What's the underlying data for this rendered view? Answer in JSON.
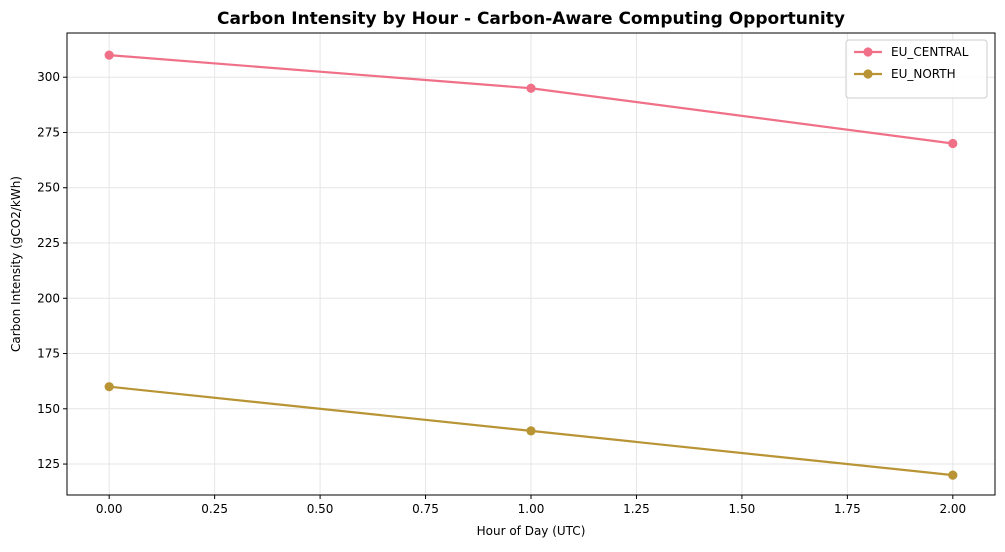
{
  "chart_data": {
    "type": "line",
    "title": "Carbon Intensity by Hour - Carbon-Aware Computing Opportunity",
    "xlabel": "Hour of Day (UTC)",
    "ylabel": "Carbon Intensity (gCO2/kWh)",
    "xlim": [
      -0.1,
      2.1
    ],
    "ylim": [
      111,
      320
    ],
    "xticks": [
      0.0,
      0.25,
      0.5,
      0.75,
      1.0,
      1.25,
      1.5,
      1.75,
      2.0
    ],
    "xtick_labels": [
      "0.00",
      "0.25",
      "0.50",
      "0.75",
      "1.00",
      "1.25",
      "1.50",
      "1.75",
      "2.00"
    ],
    "yticks": [
      125,
      150,
      175,
      200,
      225,
      250,
      275,
      300
    ],
    "ytick_labels": [
      "125",
      "150",
      "175",
      "200",
      "225",
      "250",
      "275",
      "300"
    ],
    "grid": true,
    "legend_position": "top-right",
    "series": [
      {
        "name": "EU_CENTRAL",
        "color": "#f07088",
        "x": [
          0,
          1,
          2
        ],
        "y": [
          310,
          295,
          270
        ]
      },
      {
        "name": "EU_NORTH",
        "color": "#b89434",
        "x": [
          0,
          1,
          2
        ],
        "y": [
          160,
          140,
          120
        ]
      }
    ]
  }
}
